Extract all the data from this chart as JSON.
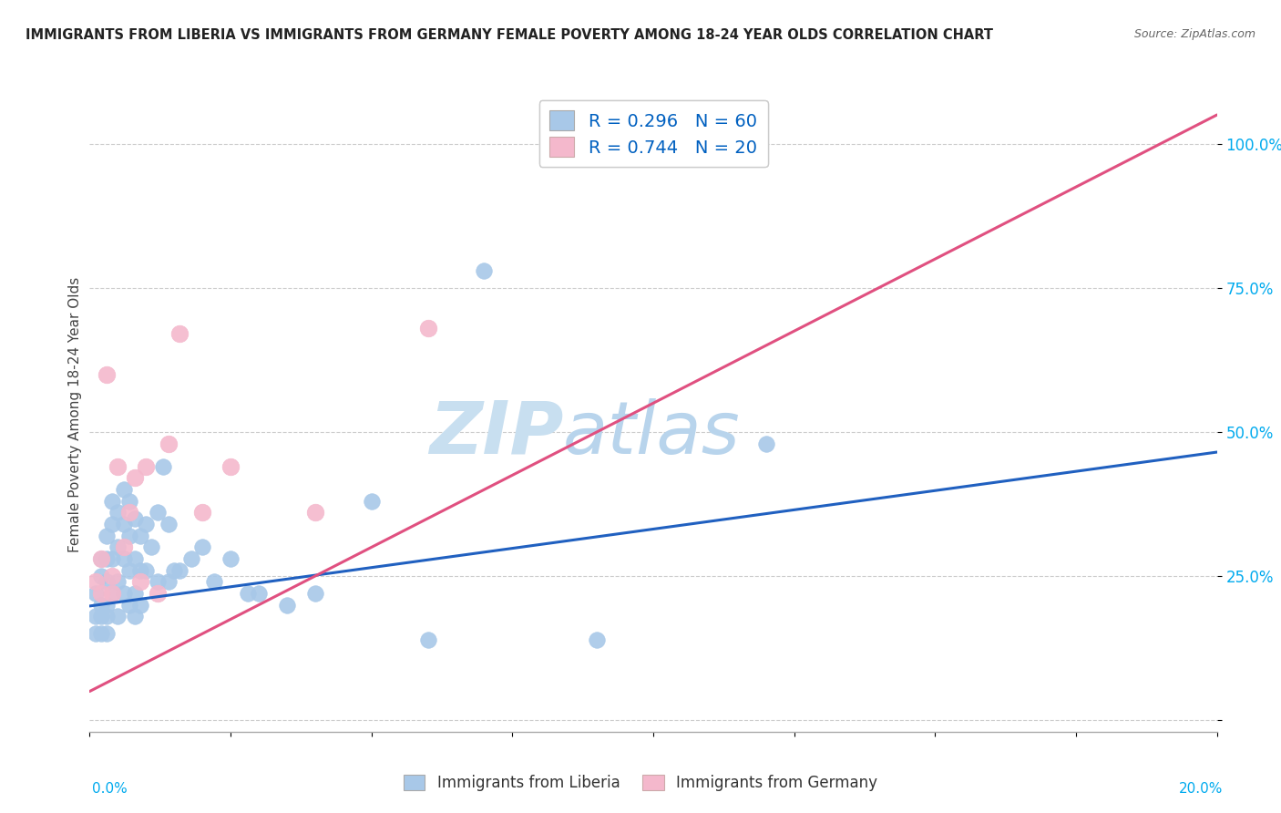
{
  "title": "IMMIGRANTS FROM LIBERIA VS IMMIGRANTS FROM GERMANY FEMALE POVERTY AMONG 18-24 YEAR OLDS CORRELATION CHART",
  "source": "Source: ZipAtlas.com",
  "ylabel": "Female Poverty Among 18-24 Year Olds",
  "ytick_vals": [
    0.0,
    0.25,
    0.5,
    0.75,
    1.0
  ],
  "ytick_labels": [
    "",
    "25.0%",
    "50.0%",
    "75.0%",
    "100.0%"
  ],
  "xlim": [
    0.0,
    0.2
  ],
  "ylim": [
    -0.02,
    1.08
  ],
  "liberia_R": 0.296,
  "liberia_N": 60,
  "germany_R": 0.744,
  "germany_N": 20,
  "liberia_color": "#a8c8e8",
  "germany_color": "#f4b8cc",
  "liberia_line_color": "#2060c0",
  "germany_line_color": "#e05080",
  "stat_color": "#0060c0",
  "background_color": "#ffffff",
  "grid_color": "#cccccc",
  "watermark_color": "#c8dff0",
  "liberia_x": [
    0.001,
    0.001,
    0.001,
    0.002,
    0.002,
    0.002,
    0.002,
    0.002,
    0.003,
    0.003,
    0.003,
    0.003,
    0.003,
    0.003,
    0.004,
    0.004,
    0.004,
    0.004,
    0.005,
    0.005,
    0.005,
    0.005,
    0.006,
    0.006,
    0.006,
    0.006,
    0.007,
    0.007,
    0.007,
    0.007,
    0.008,
    0.008,
    0.008,
    0.008,
    0.009,
    0.009,
    0.009,
    0.01,
    0.01,
    0.011,
    0.012,
    0.012,
    0.013,
    0.014,
    0.014,
    0.015,
    0.016,
    0.018,
    0.02,
    0.022,
    0.025,
    0.028,
    0.03,
    0.035,
    0.04,
    0.05,
    0.06,
    0.07,
    0.09,
    0.12
  ],
  "liberia_y": [
    0.22,
    0.18,
    0.15,
    0.28,
    0.25,
    0.2,
    0.18,
    0.15,
    0.32,
    0.28,
    0.24,
    0.2,
    0.18,
    0.15,
    0.38,
    0.34,
    0.28,
    0.22,
    0.36,
    0.3,
    0.24,
    0.18,
    0.4,
    0.34,
    0.28,
    0.22,
    0.38,
    0.32,
    0.26,
    0.2,
    0.35,
    0.28,
    0.22,
    0.18,
    0.32,
    0.26,
    0.2,
    0.34,
    0.26,
    0.3,
    0.36,
    0.24,
    0.44,
    0.34,
    0.24,
    0.26,
    0.26,
    0.28,
    0.3,
    0.24,
    0.28,
    0.22,
    0.22,
    0.2,
    0.22,
    0.38,
    0.14,
    0.78,
    0.14,
    0.48
  ],
  "germany_x": [
    0.001,
    0.002,
    0.002,
    0.003,
    0.004,
    0.004,
    0.005,
    0.006,
    0.007,
    0.008,
    0.009,
    0.01,
    0.012,
    0.014,
    0.016,
    0.02,
    0.025,
    0.04,
    0.06,
    0.09
  ],
  "germany_y": [
    0.24,
    0.28,
    0.22,
    0.6,
    0.25,
    0.22,
    0.44,
    0.3,
    0.36,
    0.42,
    0.24,
    0.44,
    0.22,
    0.48,
    0.67,
    0.36,
    0.44,
    0.36,
    0.68,
    1.0
  ],
  "liberia_line_y0": 0.198,
  "liberia_line_y1": 0.465,
  "germany_line_y0": 0.05,
  "germany_line_y1": 1.05
}
